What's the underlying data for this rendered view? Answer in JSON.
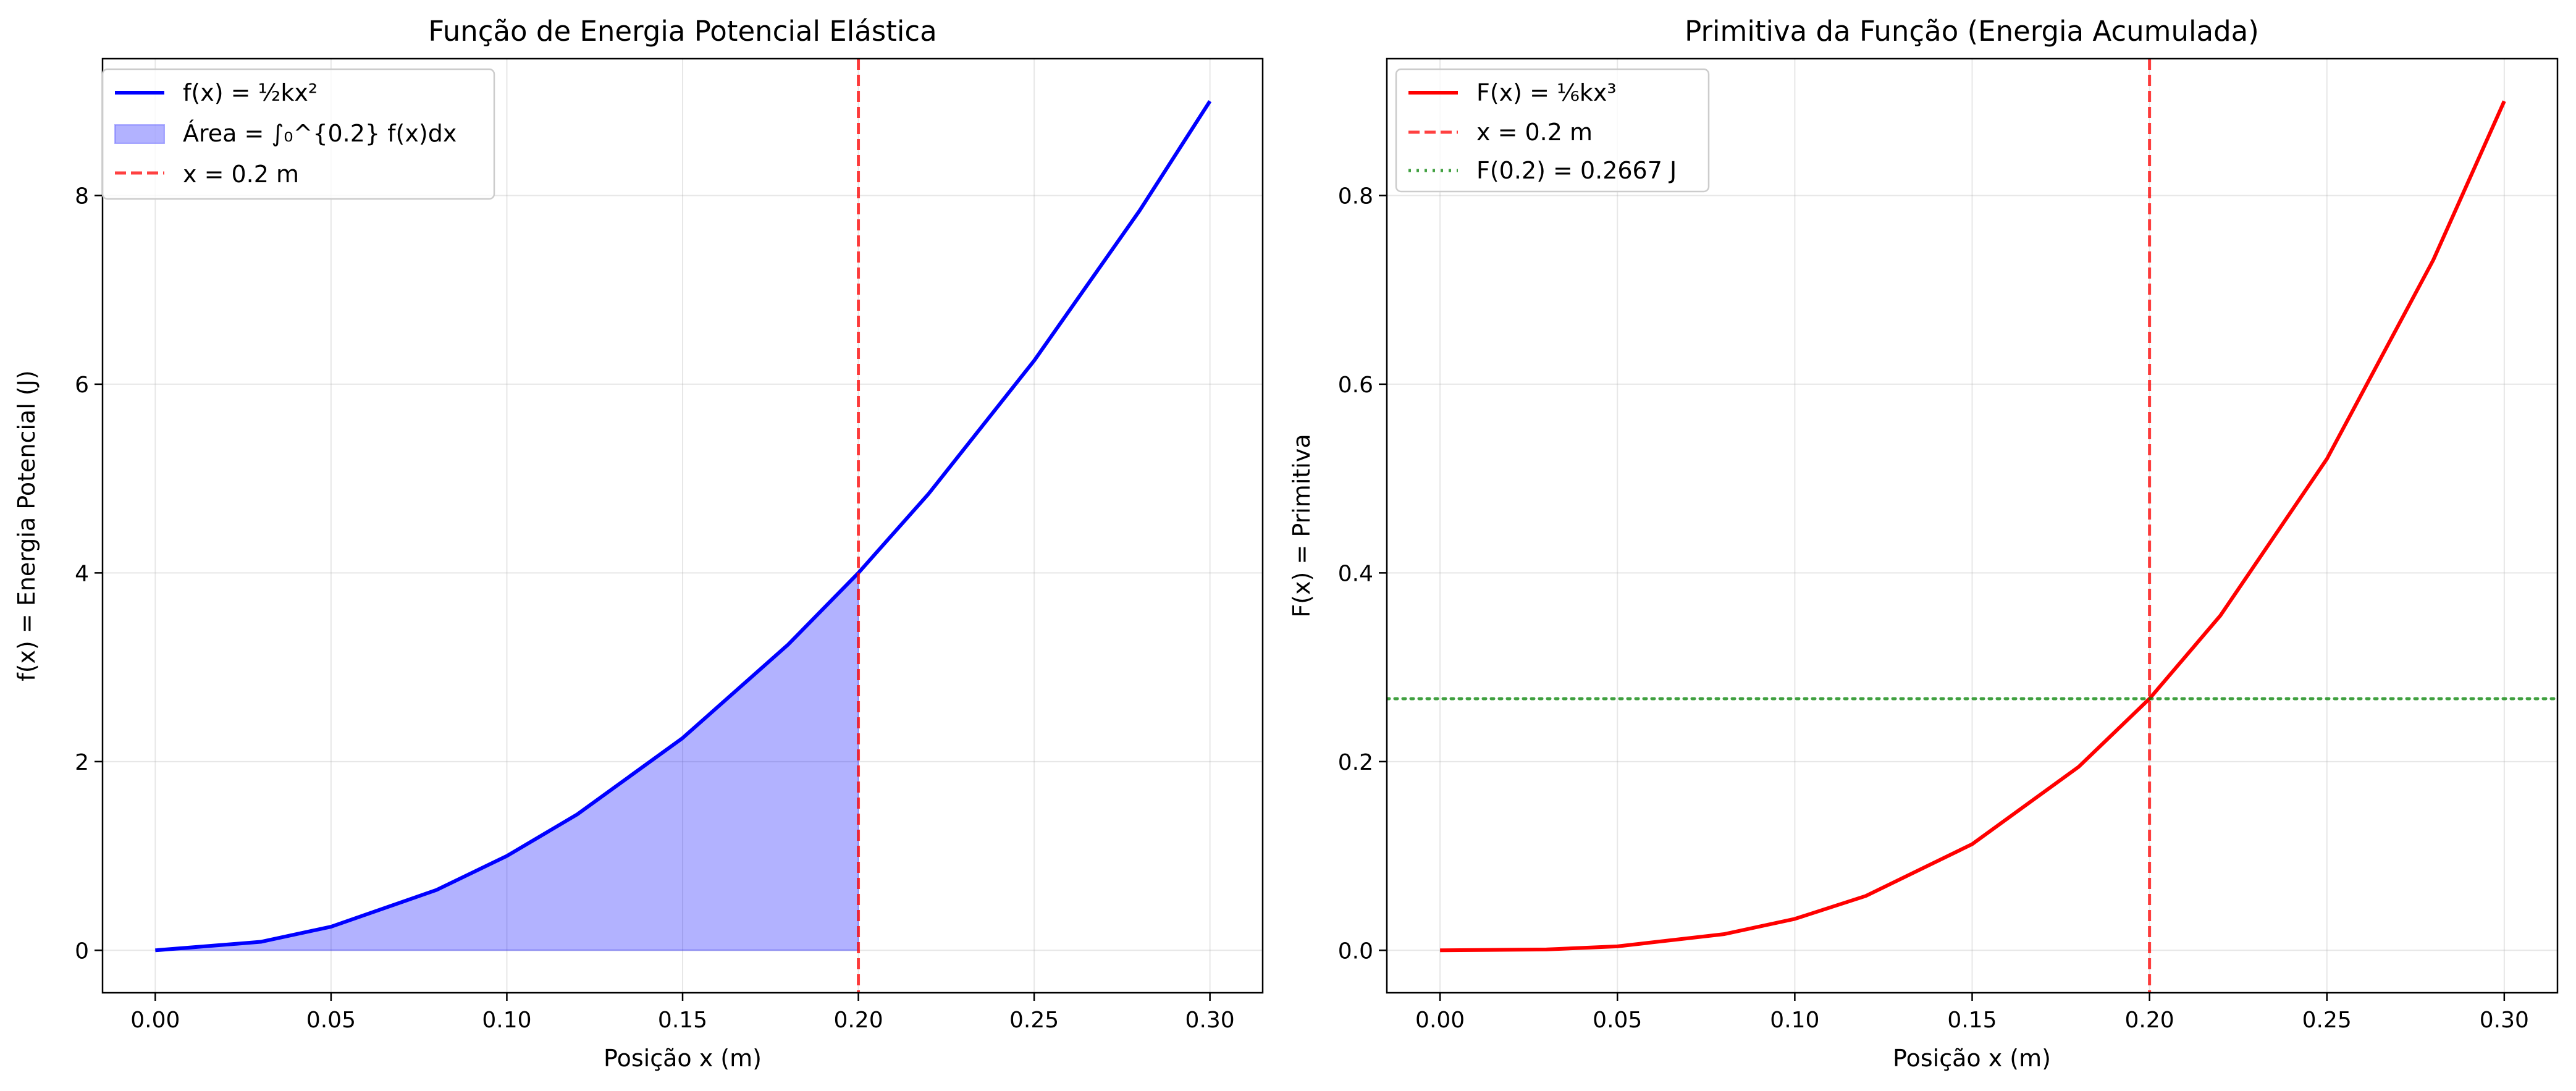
{
  "chart_data": [
    {
      "type": "line",
      "title": "Função de Energia Potencial Elástica",
      "xlabel": "Posição x (m)",
      "ylabel": "f(x) = Energia Potencial (J)",
      "xlim": [
        -0.015,
        0.315
      ],
      "ylim": [
        -0.45,
        9.45
      ],
      "xticks": [
        0.0,
        0.05,
        0.1,
        0.15,
        0.2,
        0.25,
        0.3
      ],
      "xtick_labels": [
        "0.00",
        "0.05",
        "0.10",
        "0.15",
        "0.20",
        "0.25",
        "0.30"
      ],
      "yticks": [
        0,
        2,
        4,
        6,
        8
      ],
      "ytick_labels": [
        "0",
        "2",
        "4",
        "6",
        "8"
      ],
      "grid": true,
      "legend_position": "top-left",
      "series": [
        {
          "name": "f(x) = ½kx²",
          "kind": "line",
          "color": "#0000ff",
          "style": "solid",
          "x": [
            0,
            0.03,
            0.05,
            0.08,
            0.1,
            0.12,
            0.15,
            0.18,
            0.2,
            0.22,
            0.25,
            0.28,
            0.3
          ],
          "y": [
            0,
            0.09,
            0.25,
            0.64,
            1.0,
            1.44,
            2.25,
            3.24,
            4.0,
            4.84,
            6.25,
            7.84,
            9.0
          ]
        },
        {
          "name": "Área = ∫₀^{0.2} f(x)dx",
          "kind": "area",
          "color": "#0000ff",
          "alpha": 0.3,
          "x": [
            0,
            0.03,
            0.05,
            0.08,
            0.1,
            0.12,
            0.15,
            0.18,
            0.2
          ],
          "y": [
            0,
            0.09,
            0.25,
            0.64,
            1.0,
            1.44,
            2.25,
            3.24,
            4.0
          ]
        },
        {
          "name": "x = 0.2 m",
          "kind": "vline",
          "color": "#ff0000",
          "alpha": 0.75,
          "style": "dashed",
          "x_value": 0.2
        }
      ]
    },
    {
      "type": "line",
      "title": "Primitiva da Função (Energia Acumulada)",
      "xlabel": "Posição x (m)",
      "ylabel": "F(x) = Primitiva",
      "xlim": [
        -0.015,
        0.315
      ],
      "ylim": [
        -0.045,
        0.945
      ],
      "xticks": [
        0.0,
        0.05,
        0.1,
        0.15,
        0.2,
        0.25,
        0.3
      ],
      "xtick_labels": [
        "0.00",
        "0.05",
        "0.10",
        "0.15",
        "0.20",
        "0.25",
        "0.30"
      ],
      "yticks": [
        0.0,
        0.2,
        0.4,
        0.6,
        0.8
      ],
      "ytick_labels": [
        "0.0",
        "0.2",
        "0.4",
        "0.6",
        "0.8"
      ],
      "grid": true,
      "legend_position": "top-left",
      "series": [
        {
          "name": "F(x) = ⅙kx³",
          "kind": "line",
          "color": "#ff0000",
          "style": "solid",
          "x": [
            0,
            0.03,
            0.05,
            0.08,
            0.1,
            0.12,
            0.15,
            0.18,
            0.2,
            0.22,
            0.25,
            0.28,
            0.3
          ],
          "y": [
            0,
            0.0009,
            0.0042,
            0.0171,
            0.0333,
            0.0576,
            0.1125,
            0.1944,
            0.2667,
            0.3549,
            0.5208,
            0.7317,
            0.9
          ]
        },
        {
          "name": "x = 0.2 m",
          "kind": "vline",
          "color": "#ff0000",
          "alpha": 0.75,
          "style": "dashed",
          "x_value": 0.2
        },
        {
          "name": "F(0.2) = 0.2667 J",
          "kind": "hline",
          "color": "#008000",
          "alpha": 0.75,
          "style": "dotted",
          "y_value": 0.2667
        }
      ]
    }
  ]
}
